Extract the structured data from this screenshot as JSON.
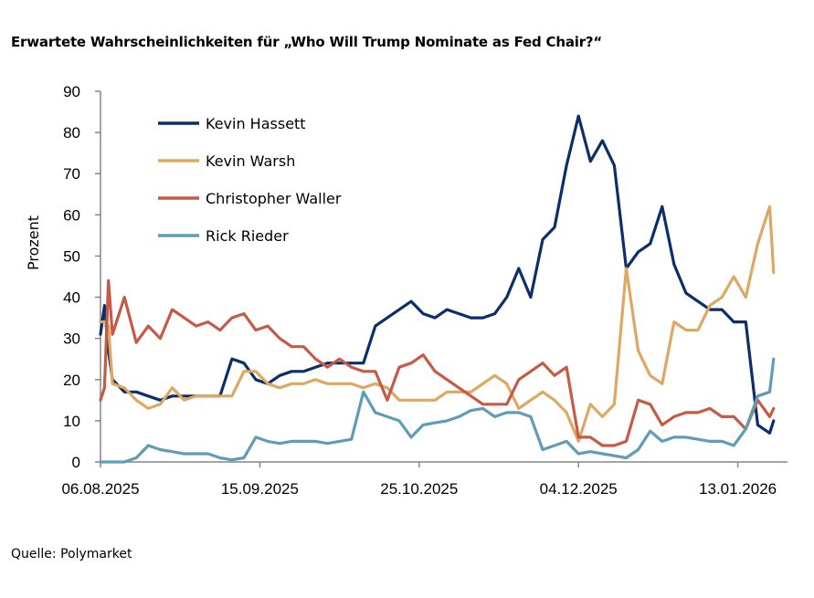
{
  "title": "Erwartete Wahrscheinlichkeiten für „Who Will Trump Nominate as Fed Chair?“",
  "source": "Quelle: Polymarket",
  "chart_data": {
    "type": "line",
    "title": "Erwartete Wahrscheinlichkeiten für „Who Will Trump Nominate as Fed Chair?“",
    "xlabel": "",
    "ylabel": "Prozent",
    "ylim": [
      0,
      90
    ],
    "yticks": [
      0,
      10,
      20,
      30,
      40,
      50,
      60,
      70,
      80,
      90
    ],
    "xlim": [
      "2025-08-06",
      "2026-01-22"
    ],
    "xticks": [
      "2025-08-06",
      "2025-09-15",
      "2025-10-25",
      "2025-12-04",
      "2026-01-13"
    ],
    "xtick_labels": [
      "06.08.2025",
      "15.09.2025",
      "25.10.2025",
      "04.12.2025",
      "13.01.2026"
    ],
    "grid": false,
    "legend_position": "top-left",
    "x": [
      "2025-08-06",
      "2025-08-07",
      "2025-08-08",
      "2025-08-09",
      "2025-08-12",
      "2025-08-15",
      "2025-08-18",
      "2025-08-21",
      "2025-08-24",
      "2025-08-27",
      "2025-08-30",
      "2025-09-02",
      "2025-09-05",
      "2025-09-08",
      "2025-09-11",
      "2025-09-14",
      "2025-09-17",
      "2025-09-20",
      "2025-09-23",
      "2025-09-26",
      "2025-09-29",
      "2025-10-02",
      "2025-10-05",
      "2025-10-08",
      "2025-10-11",
      "2025-10-14",
      "2025-10-17",
      "2025-10-20",
      "2025-10-23",
      "2025-10-26",
      "2025-10-29",
      "2025-11-01",
      "2025-11-04",
      "2025-11-07",
      "2025-11-10",
      "2025-11-13",
      "2025-11-16",
      "2025-11-19",
      "2025-11-22",
      "2025-11-25",
      "2025-11-28",
      "2025-12-01",
      "2025-12-04",
      "2025-12-07",
      "2025-12-10",
      "2025-12-13",
      "2025-12-16",
      "2025-12-19",
      "2025-12-22",
      "2025-12-25",
      "2025-12-28",
      "2025-12-31",
      "2026-01-03",
      "2026-01-06",
      "2026-01-09",
      "2026-01-12",
      "2026-01-15",
      "2026-01-18",
      "2026-01-21",
      "2026-01-22"
    ],
    "series": [
      {
        "name": "Kevin Hassett",
        "color": "#0b2f6b",
        "values": [
          31,
          38,
          27,
          20,
          17,
          17,
          16,
          15,
          16,
          16,
          16,
          16,
          16,
          25,
          24,
          20,
          19,
          21,
          22,
          22,
          23,
          24,
          24,
          24,
          24,
          33,
          35,
          37,
          39,
          36,
          35,
          37,
          36,
          35,
          35,
          36,
          40,
          47,
          40,
          54,
          57,
          72,
          84,
          73,
          78,
          72,
          47,
          51,
          53,
          62,
          48,
          41,
          39,
          37,
          37,
          34,
          34,
          9,
          7,
          10
        ]
      },
      {
        "name": "Kevin Warsh",
        "color": "#dea862",
        "values": [
          34,
          34,
          33,
          19,
          18,
          15,
          13,
          14,
          18,
          15,
          16,
          16,
          16,
          16,
          22,
          22,
          19,
          18,
          19,
          19,
          20,
          19,
          19,
          19,
          18,
          19,
          18,
          15,
          15,
          15,
          15,
          17,
          17,
          17,
          19,
          21,
          19,
          13,
          15,
          17,
          15,
          12,
          5,
          14,
          11,
          14,
          47,
          27,
          21,
          19,
          34,
          32,
          32,
          38,
          40,
          45,
          40,
          53,
          62,
          46
        ]
      },
      {
        "name": "Christopher Waller",
        "color": "#c45b46",
        "values": [
          15,
          18,
          44,
          31,
          40,
          29,
          33,
          30,
          37,
          35,
          33,
          34,
          32,
          35,
          36,
          32,
          33,
          30,
          28,
          28,
          25,
          23,
          25,
          23,
          22,
          22,
          15,
          23,
          24,
          26,
          22,
          20,
          18,
          16,
          14,
          14,
          14,
          20,
          22,
          24,
          21,
          23,
          6,
          6,
          4,
          4,
          5,
          15,
          14,
          9,
          11,
          12,
          12,
          13,
          11,
          11,
          8,
          15,
          11,
          13
        ]
      },
      {
        "name": "Rick Rieder",
        "color": "#5e9db5",
        "values": [
          0,
          0,
          0,
          0,
          0,
          1,
          4,
          3,
          2.5,
          2,
          2,
          2,
          1,
          0.5,
          1,
          6,
          5,
          4.5,
          5,
          5,
          5,
          4.5,
          5,
          5.5,
          17,
          12,
          11,
          10,
          6,
          9,
          9.5,
          10,
          11,
          12.5,
          13,
          11,
          12,
          12,
          11,
          3,
          4,
          5,
          2,
          2.5,
          2,
          1.5,
          1,
          3,
          7.5,
          5,
          6,
          6,
          5.5,
          5,
          5,
          4,
          8,
          16,
          17,
          25
        ]
      }
    ]
  }
}
